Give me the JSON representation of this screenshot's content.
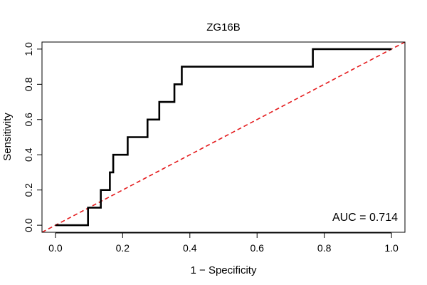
{
  "chart_data": {
    "type": "line",
    "title": "ZG16B",
    "xlabel": "1 − Specificity",
    "ylabel": "Sensitivity",
    "xlim": [
      -0.04,
      1.04
    ],
    "ylim": [
      -0.04,
      1.04
    ],
    "x_ticks": [
      0.0,
      0.2,
      0.4,
      0.6,
      0.8,
      1.0
    ],
    "x_tick_labels": [
      "0.0",
      "0.2",
      "0.4",
      "0.6",
      "0.8",
      "1.0"
    ],
    "y_ticks": [
      0.0,
      0.2,
      0.4,
      0.6,
      0.8,
      1.0
    ],
    "y_tick_labels": [
      "0.0",
      "0.2",
      "0.4",
      "0.6",
      "0.8",
      "1.0"
    ],
    "grid": false,
    "annotation": "AUC = 0.714",
    "series": [
      {
        "color": "#000000",
        "style": "solid",
        "step": true,
        "x": [
          0.0,
          0.097,
          0.097,
          0.135,
          0.135,
          0.162,
          0.162,
          0.166,
          0.166,
          0.172,
          0.172,
          0.215,
          0.215,
          0.274,
          0.274,
          0.309,
          0.309,
          0.354,
          0.354,
          0.376,
          0.376,
          0.766,
          0.766,
          1.0
        ],
        "y": [
          0.0,
          0.0,
          0.1,
          0.1,
          0.2,
          0.2,
          0.3,
          0.3,
          0.3,
          0.3,
          0.4,
          0.4,
          0.5,
          0.5,
          0.6,
          0.6,
          0.7,
          0.7,
          0.8,
          0.8,
          0.9,
          0.9,
          1.0,
          1.0
        ]
      },
      {
        "color": "#e41a1c",
        "style": "dashed",
        "x": [
          -0.04,
          1.04
        ],
        "y": [
          -0.04,
          1.04
        ]
      }
    ]
  }
}
